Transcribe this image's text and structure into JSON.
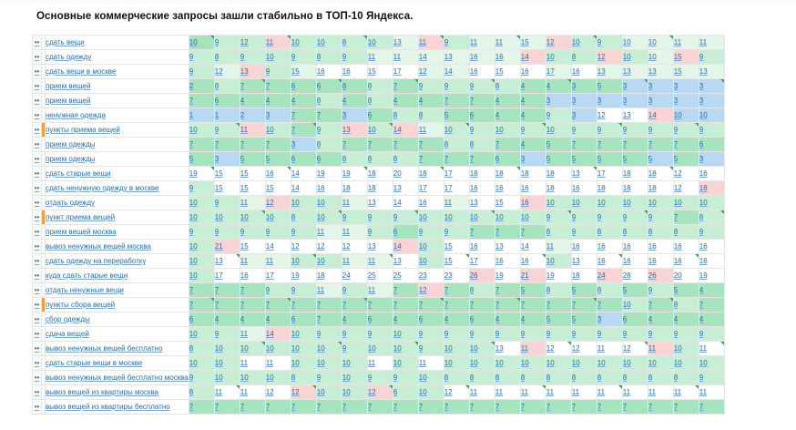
{
  "title": "Основные коммерческие запросы зашли стабильно в ТОП-10 Яндекса.",
  "rows": [
    {
      "kw": "сдать вещи",
      "hl": false,
      "cells": [
        "10",
        "9",
        "12",
        "11",
        "10",
        "10",
        "8",
        "10",
        "13",
        "11",
        "9",
        "11",
        "11",
        "15",
        "12",
        "10",
        "9",
        "10",
        "10",
        "11",
        "11"
      ],
      "cls": [
        "g1",
        "g2",
        "g2",
        "r",
        "g2",
        "g2",
        "g2",
        "g2",
        "g3",
        "r",
        "g2",
        "g3",
        "g3",
        "g3",
        "r",
        "g2",
        "g2",
        "g3",
        "g3",
        "g3",
        "g3"
      ]
    },
    {
      "kw": "сдать одежду",
      "hl": false,
      "cells": [
        "9",
        "8",
        "9",
        "10",
        "9",
        "8",
        "9",
        "11",
        "11",
        "14",
        "13",
        "16",
        "16",
        "14",
        "10",
        "8",
        "12",
        "10",
        "10",
        "15",
        "9"
      ],
      "cls": [
        "g2",
        "g2",
        "g2",
        "g2",
        "g2",
        "g2",
        "g2",
        "g3",
        "g3",
        "g3",
        "g3",
        "g3",
        "g3",
        "r",
        "g2",
        "g2",
        "r",
        "g2",
        "g3",
        "r",
        "g2"
      ]
    },
    {
      "kw": "сдать вещи в москве",
      "hl": false,
      "cells": [
        "9",
        "12",
        "13",
        "9",
        "15",
        "16",
        "16",
        "15",
        "17",
        "12",
        "14",
        "16",
        "15",
        "16",
        "17",
        "16",
        "13",
        "13",
        "13",
        "15",
        "13"
      ],
      "cls": [
        "g2",
        "g3",
        "r",
        "g2",
        "g3",
        "w",
        "w",
        "w",
        "w",
        "g3",
        "g3",
        "w",
        "w",
        "w",
        "g3",
        "w",
        "g3",
        "g3",
        "g3",
        "g3",
        "g3"
      ]
    },
    {
      "kw": "прием вещей",
      "hl": false,
      "cells": [
        "2",
        "8",
        "7",
        "7",
        "6",
        "6",
        "8",
        "8",
        "7",
        "9",
        "9",
        "9",
        "8",
        "4",
        "4",
        "3",
        "5",
        "3",
        "3",
        "3",
        "3"
      ],
      "cls": [
        "g1",
        "g2",
        "g1",
        "g1",
        "g1",
        "g1",
        "g1",
        "g2",
        "g1",
        "g2",
        "g2",
        "g2",
        "g2",
        "g1",
        "g1",
        "g1",
        "g1",
        "b",
        "b",
        "b",
        "b"
      ]
    },
    {
      "kw": "прием вещей",
      "hl": false,
      "cells": [
        "7",
        "6",
        "4",
        "4",
        "4",
        "8",
        "4",
        "8",
        "4",
        "4",
        "7",
        "7",
        "4",
        "4",
        "3",
        "3",
        "3",
        "3",
        "3",
        "3",
        "3"
      ],
      "cls": [
        "g1",
        "g1",
        "g1",
        "g1",
        "g1",
        "g2",
        "g1",
        "g2",
        "g1",
        "g1",
        "g1",
        "g1",
        "g1",
        "g1",
        "b",
        "b",
        "b",
        "b",
        "b",
        "b",
        "b"
      ]
    },
    {
      "kw": "ненужная одежда",
      "hl": false,
      "cells": [
        "1",
        "1",
        "2",
        "3",
        "7",
        "7",
        "3",
        "6",
        "8",
        "8",
        "5",
        "6",
        "4",
        "4",
        "9",
        "3",
        "12",
        "13",
        "14",
        "10",
        "10"
      ],
      "cls": [
        "b",
        "b",
        "b",
        "b",
        "g1",
        "g1",
        "b",
        "g1",
        "g2",
        "g2",
        "g1",
        "g1",
        "g1",
        "g1",
        "g2",
        "b",
        "w",
        "w",
        "r",
        "b",
        "b"
      ]
    },
    {
      "kw": "пункты приема вещей",
      "hl": true,
      "cells": [
        "10",
        "9",
        "11",
        "10",
        "7",
        "9",
        "13",
        "10",
        "14",
        "11",
        "10",
        "9",
        "10",
        "9",
        "10",
        "9",
        "9",
        "9",
        "9",
        "9",
        "9"
      ],
      "cls": [
        "g2",
        "g2",
        "r",
        "g2",
        "g1",
        "g2",
        "r",
        "g2",
        "r",
        "g3",
        "g2",
        "g2",
        "g2",
        "g2",
        "g2",
        "g2",
        "g2",
        "g2",
        "g2",
        "g2",
        "g2"
      ]
    },
    {
      "kw": "прием одежды",
      "hl": false,
      "cells": [
        "7",
        "7",
        "7",
        "7",
        "3",
        "8",
        "7",
        "7",
        "7",
        "7",
        "8",
        "8",
        "7",
        "4",
        "5",
        "7",
        "7",
        "7",
        "7",
        "7",
        "6"
      ],
      "cls": [
        "g1",
        "g1",
        "g1",
        "g1",
        "b",
        "g2",
        "g1",
        "g1",
        "g1",
        "g1",
        "g2",
        "g2",
        "g1",
        "g1",
        "g1",
        "g1",
        "g1",
        "g1",
        "g1",
        "g1",
        "g1"
      ]
    },
    {
      "kw": "прием одежды",
      "hl": false,
      "cells": [
        "5",
        "3",
        "5",
        "5",
        "6",
        "6",
        "8",
        "8",
        "8",
        "7",
        "7",
        "7",
        "6",
        "3",
        "5",
        "5",
        "5",
        "5",
        "5",
        "5",
        "3"
      ],
      "cls": [
        "g1",
        "b",
        "g1",
        "g1",
        "g1",
        "g1",
        "g2",
        "g2",
        "g2",
        "g1",
        "g1",
        "g1",
        "g1",
        "b",
        "g1",
        "g1",
        "g1",
        "g1",
        "b",
        "g1",
        "b"
      ]
    },
    {
      "kw": "сдать старые вещи",
      "hl": false,
      "cells": [
        "19",
        "15",
        "15",
        "16",
        "14",
        "19",
        "19",
        "18",
        "20",
        "18",
        "17",
        "18",
        "18",
        "18",
        "18",
        "13",
        "17",
        "18",
        "18",
        "12",
        "16"
      ],
      "cls": [
        "w",
        "w",
        "w",
        "w",
        "w",
        "w",
        "w",
        "w",
        "w",
        "w",
        "w",
        "w",
        "w",
        "w",
        "w",
        "w",
        "w",
        "w",
        "w",
        "w",
        "w"
      ]
    },
    {
      "kw": "сдать ненужную одежду в москве",
      "hl": false,
      "cells": [
        "9",
        "15",
        "15",
        "15",
        "14",
        "16",
        "18",
        "18",
        "13",
        "17",
        "17",
        "16",
        "16",
        "16",
        "18",
        "16",
        "18",
        "18",
        "18",
        "12",
        "18"
      ],
      "cls": [
        "g2",
        "w",
        "w",
        "w",
        "w",
        "w",
        "w",
        "w",
        "w",
        "w",
        "w",
        "w",
        "w",
        "w",
        "w",
        "w",
        "w",
        "w",
        "w",
        "w",
        "r"
      ]
    },
    {
      "kw": "отдать одежду",
      "hl": false,
      "cells": [
        "10",
        "9",
        "11",
        "12",
        "10",
        "10",
        "11",
        "13",
        "14",
        "16",
        "11",
        "13",
        "15",
        "16",
        "10",
        "10",
        "10",
        "10",
        "10",
        "10",
        "10"
      ],
      "cls": [
        "g2",
        "g2",
        "g3",
        "r",
        "g2",
        "g2",
        "g3",
        "w",
        "w",
        "w",
        "g3",
        "w",
        "w",
        "r",
        "g2",
        "g2",
        "g2",
        "g2",
        "g2",
        "g2",
        "g2"
      ]
    },
    {
      "kw": "пункт приема вещей",
      "hl": true,
      "cells": [
        "10",
        "10",
        "10",
        "10",
        "8",
        "10",
        "9",
        "9",
        "9",
        "10",
        "10",
        "10",
        "10",
        "10",
        "9",
        "9",
        "9",
        "9",
        "9",
        "7",
        "8"
      ],
      "cls": [
        "g2",
        "g2",
        "g2",
        "g2",
        "g2",
        "g2",
        "g2",
        "g2",
        "g2",
        "g2",
        "g2",
        "g2",
        "g2",
        "g2",
        "g2",
        "g2",
        "g2",
        "g2",
        "g2",
        "g1",
        "g2"
      ]
    },
    {
      "kw": "прием вещей москва",
      "hl": false,
      "cells": [
        "9",
        "9",
        "9",
        "9",
        "9",
        "11",
        "11",
        "9",
        "6",
        "9",
        "9",
        "7",
        "7",
        "7",
        "8",
        "9",
        "8",
        "8",
        "8",
        "8",
        "9"
      ],
      "cls": [
        "g2",
        "g2",
        "g2",
        "g2",
        "g2",
        "g3",
        "g3",
        "g2",
        "g1",
        "g2",
        "g2",
        "g1",
        "g1",
        "g1",
        "g2",
        "g2",
        "g2",
        "g2",
        "g2",
        "g2",
        "g2"
      ]
    },
    {
      "kw": "вывоз ненужных вещей москва",
      "hl": false,
      "cells": [
        "10",
        "21",
        "15",
        "14",
        "12",
        "12",
        "12",
        "13",
        "14",
        "10",
        "15",
        "16",
        "13",
        "14",
        "11",
        "16",
        "16",
        "16",
        "16",
        "16",
        "16"
      ],
      "cls": [
        "g2",
        "r",
        "w",
        "w",
        "w",
        "w",
        "w",
        "w",
        "r",
        "g2",
        "w",
        "w",
        "w",
        "w",
        "g3",
        "w",
        "w",
        "w",
        "w",
        "w",
        "w"
      ]
    },
    {
      "kw": "сдать одежду на переработку",
      "hl": false,
      "cells": [
        "10",
        "13",
        "11",
        "11",
        "10",
        "10",
        "11",
        "11",
        "13",
        "10",
        "15",
        "17",
        "16",
        "16",
        "10",
        "13",
        "16",
        "16",
        "16",
        "16",
        "16"
      ],
      "cls": [
        "g2",
        "w",
        "g3",
        "g3",
        "g2",
        "g2",
        "g3",
        "g3",
        "w",
        "g2",
        "w",
        "w",
        "w",
        "w",
        "g2",
        "w",
        "w",
        "w",
        "w",
        "w",
        "w"
      ]
    },
    {
      "kw": "куда сдать старые вещи",
      "hl": false,
      "cells": [
        "10",
        "17",
        "16",
        "17",
        "19",
        "18",
        "24",
        "25",
        "25",
        "23",
        "23",
        "26",
        "19",
        "21",
        "19",
        "18",
        "24",
        "28",
        "26",
        "20",
        "19"
      ],
      "cls": [
        "g2",
        "w",
        "w",
        "w",
        "w",
        "w",
        "w",
        "w",
        "w",
        "w",
        "w",
        "r",
        "w",
        "r",
        "w",
        "w",
        "r",
        "w",
        "r",
        "w",
        "w"
      ]
    },
    {
      "kw": "отдать ненужные вещи",
      "hl": false,
      "cells": [
        "7",
        "7",
        "7",
        "9",
        "9",
        "11",
        "9",
        "11",
        "7",
        "12",
        "7",
        "8",
        "7",
        "5",
        "8",
        "5",
        "8",
        "5",
        "9",
        "5",
        "4"
      ],
      "cls": [
        "g1",
        "g1",
        "g1",
        "g2",
        "g2",
        "g3",
        "g2",
        "g3",
        "g1",
        "r",
        "g1",
        "g2",
        "g1",
        "g1",
        "g2",
        "g1",
        "g2",
        "g1",
        "g2",
        "g1",
        "g1"
      ]
    },
    {
      "kw": "пункты сбора вещей",
      "hl": true,
      "cells": [
        "7",
        "7",
        "7",
        "7",
        "7",
        "7",
        "7",
        "7",
        "7",
        "7",
        "7",
        "7",
        "7",
        "7",
        "7",
        "7",
        "7",
        "10",
        "7",
        "8",
        "7"
      ],
      "cls": [
        "g1",
        "g1",
        "g1",
        "g1",
        "g1",
        "g1",
        "g1",
        "g1",
        "g1",
        "g1",
        "g1",
        "g1",
        "g1",
        "g1",
        "g1",
        "g1",
        "g1",
        "g2",
        "g1",
        "g2",
        "g1"
      ]
    },
    {
      "kw": "сбор одежды",
      "hl": false,
      "cells": [
        "6",
        "4",
        "4",
        "4",
        "6",
        "7",
        "4",
        "6",
        "4",
        "6",
        "4",
        "6",
        "4",
        "4",
        "5",
        "5",
        "3",
        "6",
        "4",
        "4",
        "4"
      ],
      "cls": [
        "g1",
        "g1",
        "g1",
        "g1",
        "g1",
        "g1",
        "g1",
        "g1",
        "g1",
        "g1",
        "g1",
        "g1",
        "g1",
        "g1",
        "g1",
        "g1",
        "b",
        "g1",
        "g1",
        "g1",
        "g1"
      ]
    },
    {
      "kw": "сдача вещей",
      "hl": false,
      "cells": [
        "10",
        "9",
        "11",
        "14",
        "10",
        "9",
        "9",
        "9",
        "10",
        "9",
        "9",
        "9",
        "9",
        "9",
        "9",
        "9",
        "9",
        "9",
        "9",
        "9",
        "9"
      ],
      "cls": [
        "g2",
        "g2",
        "g3",
        "r",
        "g2",
        "g2",
        "g2",
        "g2",
        "g2",
        "g2",
        "g2",
        "g2",
        "g2",
        "g2",
        "g2",
        "g2",
        "g2",
        "g2",
        "g2",
        "g2",
        "g2"
      ]
    },
    {
      "kw": "вывоз ненужных вещей бесплатно",
      "hl": false,
      "cells": [
        "8",
        "10",
        "10",
        "10",
        "10",
        "10",
        "9",
        "10",
        "10",
        "9",
        "10",
        "10",
        "13",
        "11",
        "12",
        "12",
        "11",
        "12",
        "11",
        "10",
        "11"
      ],
      "cls": [
        "g2",
        "g2",
        "g2",
        "g2",
        "g2",
        "g2",
        "g2",
        "g2",
        "g2",
        "g2",
        "g2",
        "g2",
        "w",
        "r",
        "w",
        "w",
        "w",
        "w",
        "r",
        "g2",
        "w"
      ]
    },
    {
      "kw": "сдать старые вещи в москве",
      "hl": false,
      "cells": [
        "10",
        "10",
        "11",
        "11",
        "10",
        "10",
        "10",
        "11",
        "10",
        "11",
        "10",
        "10",
        "10",
        "10",
        "10",
        "10",
        "10",
        "10",
        "10",
        "10",
        "10"
      ],
      "cls": [
        "g2",
        "g2",
        "w",
        "w",
        "g2",
        "g2",
        "g2",
        "w",
        "g2",
        "w",
        "g2",
        "g2",
        "g2",
        "g2",
        "g2",
        "g2",
        "g2",
        "g2",
        "g2",
        "g2",
        "g2"
      ]
    },
    {
      "kw": "вывоз ненужных вещей бесплатно москва",
      "hl": false,
      "cells": [
        "9",
        "10",
        "10",
        "10",
        "8",
        "9",
        "10",
        "9",
        "9",
        "10",
        "8",
        "8",
        "8",
        "8",
        "8",
        "8",
        "8",
        "8",
        "8",
        "8",
        "9"
      ],
      "cls": [
        "g2",
        "g2",
        "g2",
        "g2",
        "g2",
        "g2",
        "g2",
        "g2",
        "g2",
        "g2",
        "g2",
        "g2",
        "g2",
        "g2",
        "g2",
        "g2",
        "g2",
        "g2",
        "g2",
        "g2",
        "g2"
      ]
    },
    {
      "kw": "вывоз вещей из квартиры москва",
      "hl": false,
      "cells": [
        "8",
        "11",
        "11",
        "12",
        "12",
        "10",
        "10",
        "12",
        "6",
        "10",
        "12",
        "11",
        "11",
        "11",
        "11",
        "11",
        "11",
        "11",
        "11",
        "11",
        "11"
      ],
      "cls": [
        "g2",
        "w",
        "w",
        "w",
        "r",
        "g2",
        "g2",
        "r",
        "g2",
        "g2",
        "w",
        "w",
        "w",
        "w",
        "w",
        "w",
        "w",
        "w",
        "w",
        "w",
        "w"
      ]
    },
    {
      "kw": "вывоз вещей из квартиры бесплатно",
      "hl": false,
      "cells": [
        "7",
        "7",
        "7",
        "7",
        "7",
        "7",
        "7",
        "7",
        "7",
        "7",
        "7",
        "7",
        "7",
        "7",
        "7",
        "7",
        "7",
        "7",
        "7",
        "7",
        "7"
      ],
      "cls": [
        "g1",
        "g1",
        "g1",
        "g1",
        "g1",
        "g1",
        "g1",
        "g1",
        "g1",
        "g1",
        "g1",
        "g1",
        "g1",
        "g1",
        "g1",
        "g1",
        "g1",
        "g1",
        "g1",
        "g1",
        "g1"
      ]
    }
  ]
}
